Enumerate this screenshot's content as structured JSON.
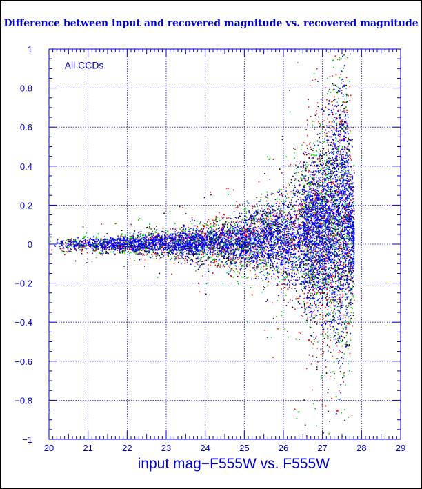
{
  "chart_data": {
    "type": "scatter",
    "title": "Difference between input and recovered magnitude vs. recovered magnitude",
    "xlabel": "input mag−F555W vs. F555W",
    "ylabel": "",
    "annotation": "All CCDs",
    "xlim": [
      20,
      29
    ],
    "ylim": [
      -1,
      1
    ],
    "x_ticks": [
      "20",
      "21",
      "22",
      "23",
      "24",
      "25",
      "26",
      "27",
      "28",
      "29"
    ],
    "y_ticks": [
      "−1",
      "−0.8",
      "−0.6",
      "−0.4",
      "−0.2",
      "0",
      "0.2",
      "0.4",
      "0.6",
      "0.8",
      "1"
    ],
    "grid": true,
    "series_colors": [
      "#0000ff",
      "#ff0000",
      "#00cc00",
      "#000000"
    ],
    "axis_color": "#0000cc",
    "envelope": [
      {
        "x": 20.0,
        "y_lo": -0.03,
        "y_hi": 0.03
      },
      {
        "x": 21.0,
        "y_lo": -0.035,
        "y_hi": 0.035
      },
      {
        "x": 22.0,
        "y_lo": -0.04,
        "y_hi": 0.045
      },
      {
        "x": 23.0,
        "y_lo": -0.06,
        "y_hi": 0.07
      },
      {
        "x": 24.0,
        "y_lo": -0.08,
        "y_hi": 0.1
      },
      {
        "x": 25.0,
        "y_lo": -0.12,
        "y_hi": 0.15
      },
      {
        "x": 26.0,
        "y_lo": -0.2,
        "y_hi": 0.27
      },
      {
        "x": 27.0,
        "y_lo": -0.4,
        "y_hi": 0.55
      },
      {
        "x": 27.5,
        "y_lo": -0.55,
        "y_hi": 0.95
      },
      {
        "x": 27.8,
        "y_lo": -0.2,
        "y_hi": 0.3
      }
    ],
    "x_range_data": [
      20.0,
      27.8
    ]
  }
}
